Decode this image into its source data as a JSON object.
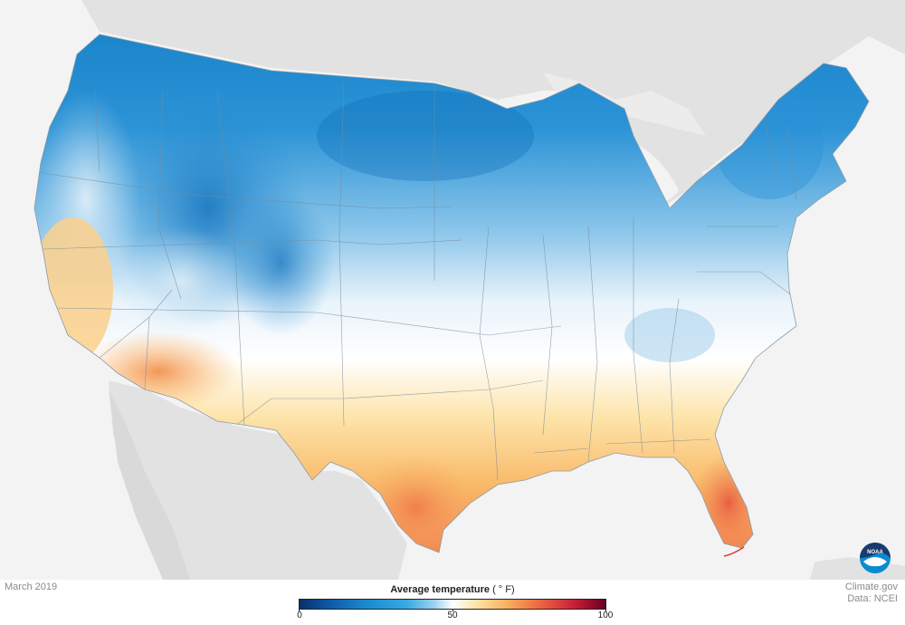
{
  "date_label": "March 2019",
  "legend": {
    "title": "Average temperature",
    "unit": "( ° F)",
    "ticks": [
      "0",
      "50",
      "100"
    ],
    "range": [
      0,
      100
    ],
    "colors": {
      "cold": "#08306b",
      "cool": "#1b8ad1",
      "mid": "#ffffff",
      "warm": "#f9ae5e",
      "hot": "#67001f"
    }
  },
  "credit": {
    "line1": "Climate.gov",
    "line2": "Data: NCEI"
  },
  "logo": {
    "icon": "noaa-logo-icon",
    "text": "NOAA"
  }
}
